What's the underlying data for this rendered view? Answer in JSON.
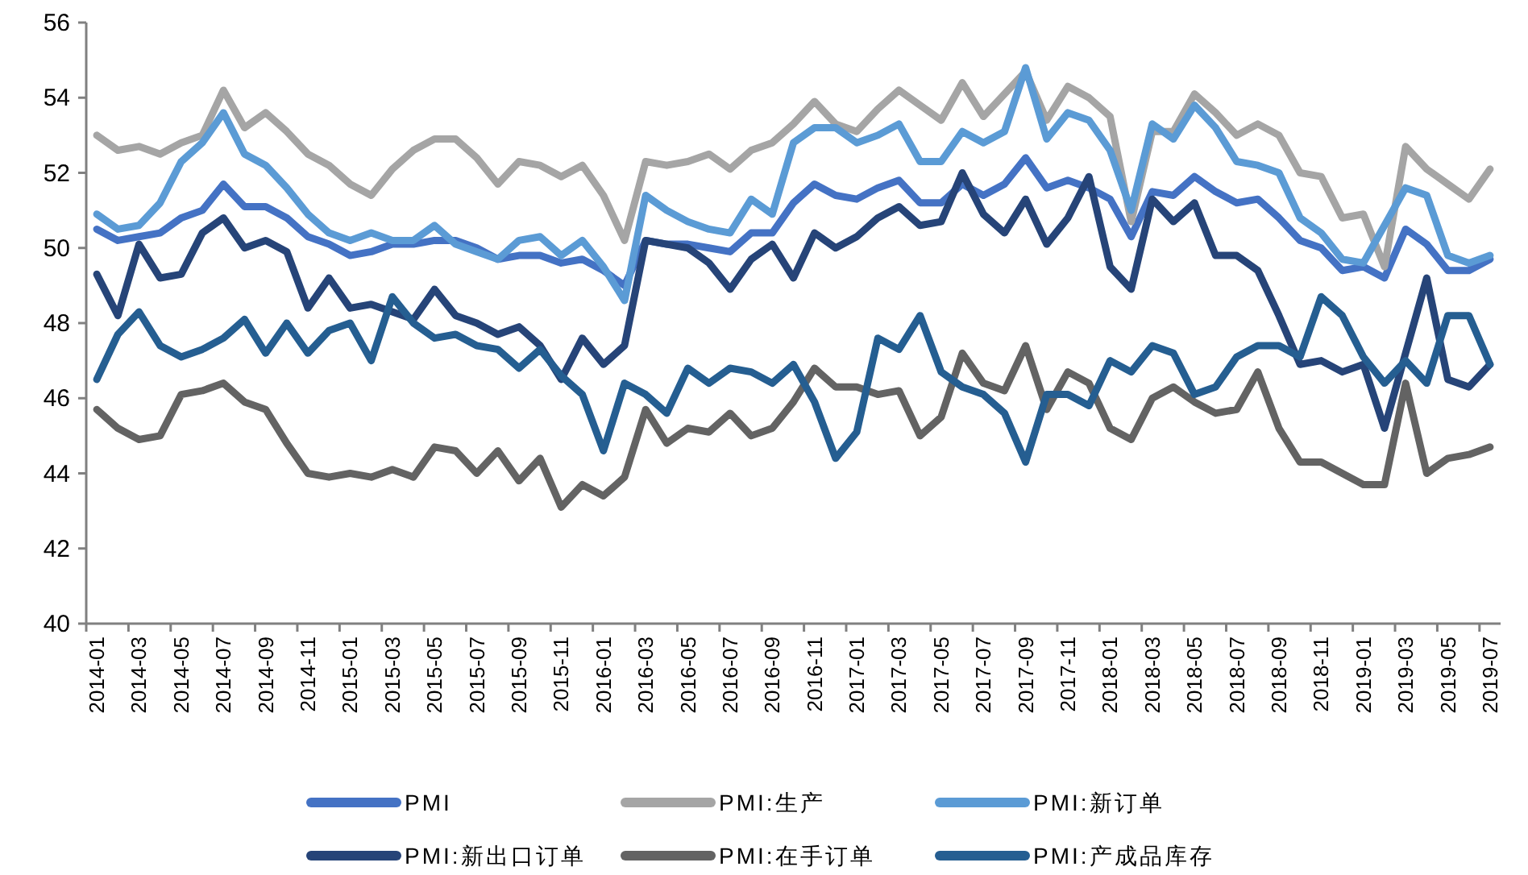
{
  "chart_data": {
    "type": "line",
    "categories": [
      "2014-01",
      null,
      "2014-03",
      null,
      "2014-05",
      null,
      "2014-07",
      null,
      "2014-09",
      null,
      "2014-11",
      null,
      "2015-01",
      null,
      "2015-03",
      null,
      "2015-05",
      null,
      "2015-07",
      null,
      "2015-09",
      null,
      "2015-11",
      null,
      "2016-01",
      null,
      "2016-03",
      null,
      "2016-05",
      null,
      "2016-07",
      null,
      "2016-09",
      null,
      "2016-11",
      null,
      "2017-01",
      null,
      "2017-03",
      null,
      "2017-05",
      null,
      "2017-07",
      null,
      "2017-09",
      null,
      "2017-11",
      null,
      "2018-01",
      null,
      "2018-03",
      null,
      "2018-05",
      null,
      "2018-07",
      null,
      "2018-09",
      null,
      "2018-11",
      null,
      "2019-01",
      null,
      "2019-03",
      null,
      "2019-05",
      null,
      "2019-07"
    ],
    "ylim": [
      40,
      56
    ],
    "yticks": [
      40,
      42,
      44,
      46,
      48,
      50,
      52,
      54,
      56
    ],
    "grid": false,
    "legend": "bottom",
    "line_style": "solid",
    "series": [
      {
        "name": "PMI",
        "color": "#4472c4",
        "values": [
          50.5,
          50.2,
          50.3,
          50.4,
          50.8,
          51.0,
          51.7,
          51.1,
          51.1,
          50.8,
          50.3,
          50.1,
          49.8,
          49.9,
          50.1,
          50.1,
          50.2,
          50.2,
          50.0,
          49.7,
          49.8,
          49.8,
          49.6,
          49.7,
          49.4,
          49.0,
          50.2,
          50.1,
          50.1,
          50.0,
          49.9,
          50.4,
          50.4,
          51.2,
          51.7,
          51.4,
          51.3,
          51.6,
          51.8,
          51.2,
          51.2,
          51.7,
          51.4,
          51.7,
          52.4,
          51.6,
          51.8,
          51.6,
          51.3,
          50.3,
          51.5,
          51.4,
          51.9,
          51.5,
          51.2,
          51.3,
          50.8,
          50.2,
          50.0,
          49.4,
          49.5,
          49.2,
          50.5,
          50.1,
          49.4,
          49.4,
          49.7
        ]
      },
      {
        "name": "PMI:生产",
        "color": "#a5a5a5",
        "values": [
          53.0,
          52.6,
          52.7,
          52.5,
          52.8,
          53.0,
          54.2,
          53.2,
          53.6,
          53.1,
          52.5,
          52.2,
          51.7,
          51.4,
          52.1,
          52.6,
          52.9,
          52.9,
          52.4,
          51.7,
          52.3,
          52.2,
          51.9,
          52.2,
          51.4,
          50.2,
          52.3,
          52.2,
          52.3,
          52.5,
          52.1,
          52.6,
          52.8,
          53.3,
          53.9,
          53.3,
          53.1,
          53.7,
          54.2,
          53.8,
          53.4,
          54.4,
          53.5,
          54.1,
          54.7,
          53.4,
          54.3,
          54.0,
          53.5,
          50.7,
          53.1,
          53.1,
          54.1,
          53.6,
          53.0,
          53.3,
          53.0,
          52.0,
          51.9,
          50.8,
          50.9,
          49.5,
          52.7,
          52.1,
          51.7,
          51.3,
          52.1
        ]
      },
      {
        "name": "PMI:新订单",
        "color": "#5b9bd5",
        "values": [
          50.9,
          50.5,
          50.6,
          51.2,
          52.3,
          52.8,
          53.6,
          52.5,
          52.2,
          51.6,
          50.9,
          50.4,
          50.2,
          50.4,
          50.2,
          50.2,
          50.6,
          50.1,
          49.9,
          49.7,
          50.2,
          50.3,
          49.8,
          50.2,
          49.5,
          48.6,
          51.4,
          51.0,
          50.7,
          50.5,
          50.4,
          51.3,
          50.9,
          52.8,
          53.2,
          53.2,
          52.8,
          53.0,
          53.3,
          52.3,
          52.3,
          53.1,
          52.8,
          53.1,
          54.8,
          52.9,
          53.6,
          53.4,
          52.6,
          51.0,
          53.3,
          52.9,
          53.8,
          53.2,
          52.3,
          52.2,
          52.0,
          50.8,
          50.4,
          49.7,
          49.6,
          50.6,
          51.6,
          51.4,
          49.8,
          49.6,
          49.8
        ]
      },
      {
        "name": "PMI:新出口订单",
        "color": "#264478",
        "values": [
          49.3,
          48.2,
          50.1,
          49.2,
          49.3,
          50.4,
          50.8,
          50.0,
          50.2,
          49.9,
          48.4,
          49.2,
          48.4,
          48.5,
          48.3,
          48.1,
          48.9,
          48.2,
          48.0,
          47.7,
          47.9,
          47.4,
          46.5,
          47.6,
          46.9,
          47.4,
          50.2,
          50.1,
          50.0,
          49.6,
          48.9,
          49.7,
          50.1,
          49.2,
          50.4,
          50.0,
          50.3,
          50.8,
          51.1,
          50.6,
          50.7,
          52.0,
          50.9,
          50.4,
          51.3,
          50.1,
          50.8,
          51.9,
          49.5,
          48.9,
          51.3,
          50.7,
          51.2,
          49.8,
          49.8,
          49.4,
          48.2,
          46.9,
          47.0,
          46.7,
          46.9,
          45.2,
          47.2,
          49.2,
          46.5,
          46.3,
          46.9
        ]
      },
      {
        "name": "PMI:在手订单",
        "color": "#636363",
        "values": [
          45.7,
          45.2,
          44.9,
          45.0,
          46.1,
          46.2,
          46.4,
          45.9,
          45.7,
          44.8,
          44.0,
          43.9,
          44.0,
          43.9,
          44.1,
          43.9,
          44.7,
          44.6,
          44.0,
          44.6,
          43.8,
          44.4,
          43.1,
          43.7,
          43.4,
          43.9,
          45.7,
          44.8,
          45.2,
          45.1,
          45.6,
          45.0,
          45.2,
          45.9,
          46.8,
          46.3,
          46.3,
          46.1,
          46.2,
          45.0,
          45.5,
          47.2,
          46.4,
          46.2,
          47.4,
          45.7,
          46.7,
          46.4,
          45.2,
          44.9,
          46.0,
          46.3,
          45.9,
          45.6,
          45.7,
          46.7,
          45.2,
          44.3,
          44.3,
          44.0,
          43.7,
          43.7,
          46.4,
          44.0,
          44.4,
          44.5,
          44.7
        ]
      },
      {
        "name": "PMI:产成品库存",
        "color": "#255e91",
        "values": [
          46.5,
          47.7,
          48.3,
          47.4,
          47.1,
          47.3,
          47.6,
          48.1,
          47.2,
          48.0,
          47.2,
          47.8,
          48.0,
          47.0,
          48.7,
          48.0,
          47.6,
          47.7,
          47.4,
          47.3,
          46.8,
          47.3,
          46.6,
          46.1,
          44.6,
          46.4,
          46.1,
          45.6,
          46.8,
          46.4,
          46.8,
          46.7,
          46.4,
          46.9,
          45.9,
          44.4,
          45.1,
          47.6,
          47.3,
          48.2,
          46.7,
          46.3,
          46.1,
          45.6,
          44.3,
          46.1,
          46.1,
          45.8,
          47.0,
          46.7,
          47.4,
          47.2,
          46.1,
          46.3,
          47.1,
          47.4,
          47.4,
          47.1,
          48.7,
          48.2,
          47.1,
          46.4,
          47.0,
          46.4,
          48.2,
          48.2,
          46.9
        ]
      }
    ]
  }
}
